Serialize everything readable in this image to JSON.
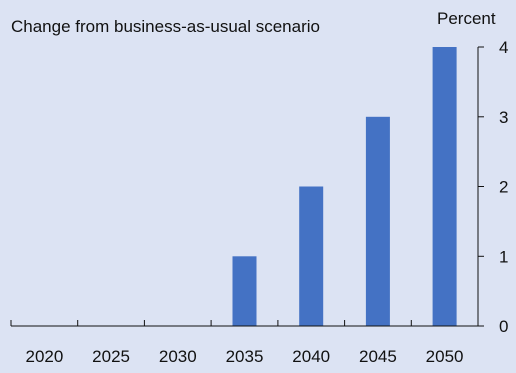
{
  "chart_data": {
    "type": "bar",
    "subtitle": "Change from business-as-usual scenario",
    "unit_label": "Percent",
    "categories": [
      "2020",
      "2025",
      "2030",
      "2035",
      "2040",
      "2045",
      "2050"
    ],
    "values": [
      0,
      0,
      0,
      1,
      2,
      3,
      4
    ],
    "ylim": [
      0,
      4
    ],
    "yticks": [
      0,
      1,
      2,
      3,
      4
    ],
    "y_axis_side": "right",
    "grid": false,
    "bar_color": "#4472c4"
  }
}
